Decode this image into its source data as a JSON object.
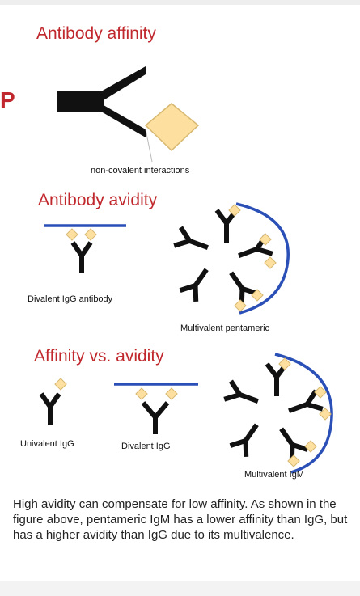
{
  "sections": {
    "affinity_title": "Antibody affinity",
    "avidity_title": "Antibody avidity",
    "comparison_title": "Affinity vs. avidity"
  },
  "left_mark": "P",
  "labels": {
    "noncovalent": "non-covalent interactions",
    "divalent_igg_antibody": "Divalent IgG antibody",
    "multivalent_pentameric": "Multivalent pentameric",
    "univalent_igg": "Univalent IgG",
    "divalent_igg": "Divalent IgG",
    "multivalent_igm": "Multivalent IgM"
  },
  "caption": "High avidity can compensate for low affinity. As shown in the figure above, pentameric IgM has a lower affinity than IgG, but has a higher avidity than IgG due to its multivalence.",
  "colors": {
    "heading": "#c0282d",
    "antibody": "#111111",
    "antigen_fill": "#fde0a0",
    "antigen_stroke": "#d7b870",
    "surface": "#2a4fb6"
  }
}
